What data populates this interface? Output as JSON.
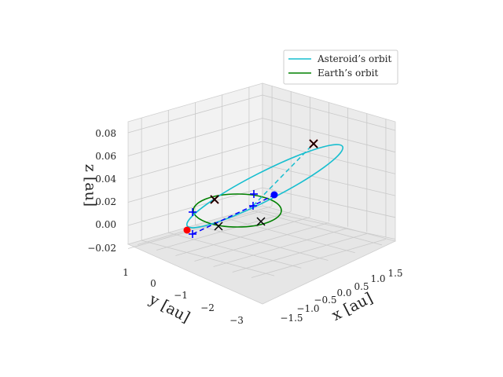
{
  "chart_data": {
    "type": "line3d",
    "axes": {
      "x": {
        "label": "x [au]",
        "ticks": [
          "−1.5",
          "−1.0",
          "−0.5",
          "0.0",
          "0.5",
          "1.0",
          "1.5"
        ]
      },
      "y": {
        "label": "y [au]",
        "ticks": [
          "1",
          "0",
          "−1",
          "−2",
          "−3"
        ]
      },
      "z": {
        "label": "z [au]",
        "ticks": [
          "−0.02",
          "0.00",
          "0.02",
          "0.04",
          "0.06",
          "0.08"
        ]
      }
    },
    "legend": {
      "placement": "upper-right",
      "entries": [
        {
          "label": "Asteroid’s orbit",
          "color": "#17becf"
        },
        {
          "label": "Earth’s orbit",
          "color": "#008000"
        }
      ]
    },
    "colors": {
      "asteroid": "#17becf",
      "earth": "#008000",
      "marker_red": "#ff0000",
      "marker_blue": "#0000ff",
      "cross": "#000000",
      "plus": "#0000ff"
    },
    "grid": true
  }
}
